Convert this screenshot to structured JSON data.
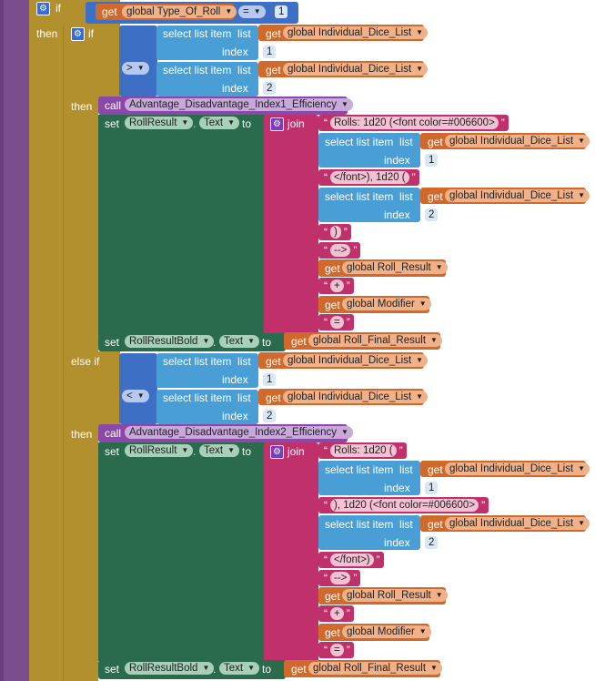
{
  "kw": {
    "if": "if",
    "then": "then",
    "else_if": "else if",
    "call": "call",
    "set": "set",
    "to": "to",
    "join": "join",
    "select": "select list item",
    "list": "list",
    "index": "index",
    "get": "get",
    "text": "Text",
    "eq": "=",
    "gt": ">",
    "lt": "<"
  },
  "vars": {
    "type_of_roll": "global Type_Of_Roll",
    "dice_list": "global Individual_Dice_List",
    "roll_result": "global Roll_Result",
    "modifier": "global Modifier",
    "final_result": "global Roll_Final_Result"
  },
  "components": {
    "roll_result": "RollResult",
    "roll_result_bold": "RollResultBold"
  },
  "procs": {
    "index1": "Advantage_Disadvantage_Index1_Efficiency",
    "index2": "Advantage_Disadvantage_Index2_Efficiency"
  },
  "nums": {
    "one": "1",
    "two": "2"
  },
  "strings": {
    "rolls_green": "Rolls: 1d20 (<font color=#006600>",
    "close_font_d20": "</font>), 1d20 (",
    "close_paren": ")",
    "arrow": "-->",
    "plus": "+",
    "equals": "=",
    "rolls_plain": "Rolls: 1d20 (",
    "d20_green": "), 1d20 (<font color=#006600>",
    "close_font_paren": "</font>)"
  },
  "colors": {
    "procedure": "#7a4d8c",
    "control": "#b3902e",
    "list": "#4a9ed6",
    "variable": "#d06a2c",
    "text": "#c0306a",
    "component_set": "#2a6b4d",
    "math": "#3d6fc4",
    "proc_call": "#8a48a8"
  }
}
